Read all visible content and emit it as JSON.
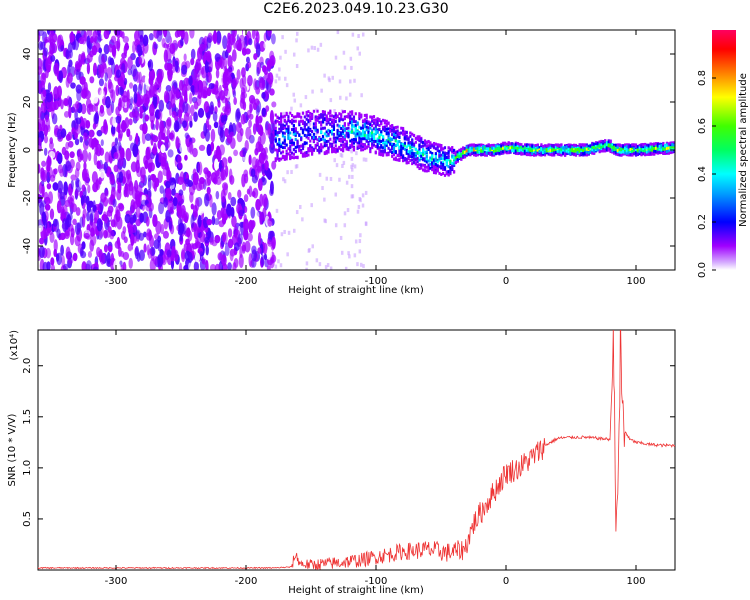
{
  "title": "C2E6.2023.049.10.23.G30",
  "colors": {
    "snr_line": "#ee3333",
    "axis": "#000000",
    "colormap": [
      "#ffffff",
      "#a000ff",
      "#5000ff",
      "#0000ff",
      "#00a0ff",
      "#00ffff",
      "#00ff60",
      "#40ff00",
      "#ffff00",
      "#ff8000",
      "#ff0000",
      "#ff0060"
    ]
  },
  "chart_data": [
    {
      "type": "heatmap",
      "xlabel": "Height of straight line (km)",
      "ylabel": "Frequency (Hz)",
      "xlim": [
        -360,
        130
      ],
      "ylim": [
        -50,
        50
      ],
      "xticks": [
        -300,
        -200,
        -100,
        0,
        100
      ],
      "yticks": [
        -40,
        -20,
        0,
        20,
        40
      ],
      "colorbar": {
        "label": "Normalized spectral amplitude",
        "range": [
          0.0,
          1.0
        ],
        "ticks": [
          "0.0",
          "0.2",
          "0.4",
          "0.6",
          "0.8"
        ]
      },
      "features": {
        "noise_region_x": [
          -360,
          -178
        ],
        "signal_band_center": [
          [
            -178,
            5
          ],
          [
            -150,
            7
          ],
          [
            -120,
            8
          ],
          [
            -100,
            6
          ],
          [
            -80,
            2
          ],
          [
            -60,
            -3
          ],
          [
            -45,
            -5
          ],
          [
            -30,
            0
          ],
          [
            -10,
            0
          ],
          [
            0,
            1
          ],
          [
            20,
            0
          ],
          [
            60,
            0
          ],
          [
            78,
            2
          ],
          [
            85,
            0
          ],
          [
            100,
            0
          ],
          [
            130,
            1
          ]
        ]
      }
    },
    {
      "type": "line",
      "xlabel": "Height of straight line (km)",
      "ylabel": "SNR (10 * V/V)",
      "yunit": "(x10⁴)",
      "xlim": [
        -360,
        130
      ],
      "ylim": [
        0,
        2.35
      ],
      "xticks": [
        -300,
        -200,
        -100,
        0,
        100
      ],
      "yticks": [
        "0.5",
        "1.0",
        "1.5",
        "2.0"
      ],
      "series": [
        {
          "x": [
            -360,
            -300,
            -250,
            -200,
            -178,
            -165,
            -162,
            -158,
            -150,
            -130,
            -110,
            -100,
            -90,
            -80,
            -60,
            -45,
            -32,
            -25,
            -15,
            -5,
            0,
            10,
            20,
            30,
            40,
            50,
            60,
            70,
            80,
            83,
            85,
            88,
            90,
            95,
            100,
            110,
            120,
            130
          ],
          "y": [
            0.02,
            0.02,
            0.02,
            0.02,
            0.02,
            0.03,
            0.15,
            0.06,
            0.05,
            0.07,
            0.1,
            0.13,
            0.15,
            0.18,
            0.2,
            0.17,
            0.2,
            0.45,
            0.65,
            0.85,
            0.95,
            1.0,
            1.1,
            1.22,
            1.29,
            1.3,
            1.3,
            1.29,
            1.28,
            2.3,
            0.1,
            2.15,
            1.4,
            1.28,
            1.25,
            1.23,
            1.22,
            1.22
          ]
        }
      ]
    }
  ]
}
